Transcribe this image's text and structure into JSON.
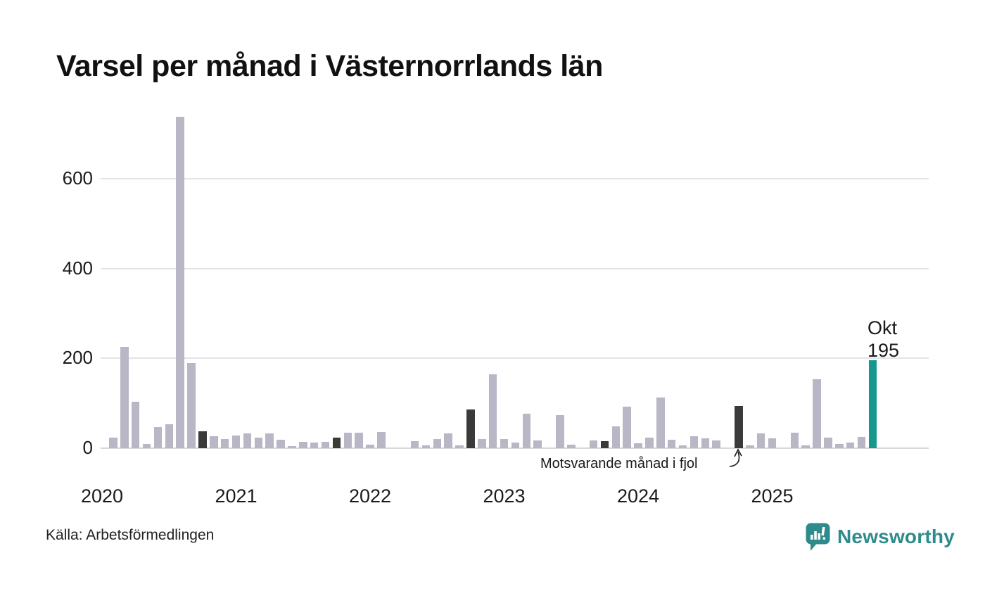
{
  "title": "Varsel per månad i Västernorrlands län",
  "source": "Källa: Arbetsförmedlingen",
  "logo": {
    "text": "Newsworthy",
    "color": "#2e8b8b"
  },
  "annotation": {
    "text": "Motsvarande månad i fjol",
    "target_month": "2024-10"
  },
  "highlight": {
    "label_month": "Okt",
    "label_value": "195",
    "month": "2025-10",
    "value": 195
  },
  "colors": {
    "bar_base": "#b9b7c6",
    "bar_last_year": "#3a3a3a",
    "bar_current": "#16998d",
    "gridline": "#e4e4e8",
    "text": "#1a1a1a"
  },
  "chart_data": {
    "type": "bar",
    "title": "Varsel per månad i Västernorrlands län",
    "xlabel": "",
    "ylabel": "",
    "x_unit": "month",
    "start_month": "2020-01",
    "end_month": "2025-10",
    "years": [
      "2020",
      "2021",
      "2022",
      "2023",
      "2024",
      "2025"
    ],
    "y_ticks": [
      0,
      200,
      400,
      600
    ],
    "ylim": [
      0,
      760
    ],
    "grid": true,
    "legend": false,
    "values_by_year": {
      "2020": [
        0,
        24,
        226,
        103,
        10,
        47,
        53,
        737,
        190,
        38,
        26,
        21
      ],
      "2021": [
        28,
        33,
        24,
        33,
        19,
        4,
        14,
        13,
        14,
        24,
        35,
        34
      ],
      "2022": [
        8,
        36,
        0,
        0,
        16,
        7,
        20,
        33,
        6,
        86,
        20,
        164
      ],
      "2023": [
        20,
        12,
        76,
        17,
        0,
        73,
        8,
        0,
        17,
        15,
        49,
        93
      ],
      "2024": [
        11,
        24,
        112,
        19,
        7,
        26,
        22,
        17,
        0,
        94,
        7,
        33
      ],
      "2025": [
        22,
        0,
        35,
        7,
        153,
        24,
        9,
        12,
        25,
        195
      ]
    },
    "dark_months": [
      "2020-10",
      "2021-10",
      "2022-10",
      "2023-10",
      "2024-10"
    ],
    "highlight_month": "2025-10",
    "annotation": "Motsvarande månad i fjol → points at 2024-10 bar",
    "value_label": "Okt 195"
  }
}
